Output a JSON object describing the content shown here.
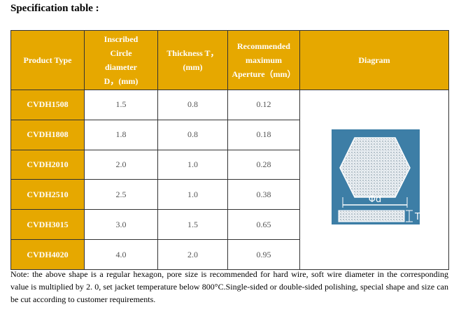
{
  "header": {
    "title": "Specification table :"
  },
  "table": {
    "columns": [
      "Product Type",
      "Inscribed Circle diameter D，(mm)",
      "Thickness T，(mm)",
      "Recommended maximum Aperture（mm）",
      "Diagram"
    ],
    "rows": [
      [
        "CVDH1508",
        "1.5",
        "0.8",
        "0.12"
      ],
      [
        "CVDH1808",
        "1.8",
        "0.8",
        "0.18"
      ],
      [
        "CVDH2010",
        "2.0",
        "1.0",
        "0.28"
      ],
      [
        "CVDH2510",
        "2.5",
        "1.0",
        "0.38"
      ],
      [
        "CVDH3015",
        "3.0",
        "1.5",
        "0.65"
      ],
      [
        "CVDH4020",
        "4.0",
        "2.0",
        "0.95"
      ]
    ],
    "diagram": {
      "diameter_label": "Φd",
      "thickness_label": "T"
    }
  },
  "note": "Note: the above shape is a regular hexagon, pore size is recommended for hard wire, soft wire diameter in the corresponding value is multiplied by 2. 0, set jacket temperature below 800°C.Single-sided or double-sided polishing, special shape and size can be cut according to customer requirements."
}
